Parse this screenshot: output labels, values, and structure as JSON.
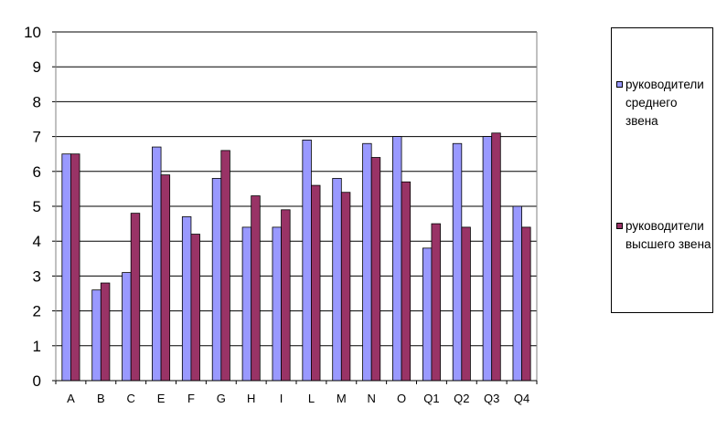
{
  "chart_data": {
    "type": "bar",
    "categories": [
      "A",
      "B",
      "C",
      "E",
      "F",
      "G",
      "H",
      "I",
      "L",
      "M",
      "N",
      "O",
      "Q1",
      "Q2",
      "Q3",
      "Q4"
    ],
    "series": [
      {
        "name": "руководители среднего звена",
        "color": "#9999ff",
        "values": [
          6.5,
          2.6,
          3.1,
          6.7,
          4.7,
          5.8,
          4.4,
          4.4,
          6.9,
          5.8,
          6.8,
          7.0,
          3.8,
          6.8,
          7.0,
          5.0
        ]
      },
      {
        "name": "руководители высшего звена",
        "color": "#993366",
        "values": [
          6.5,
          2.8,
          4.8,
          5.9,
          4.2,
          6.6,
          5.3,
          4.9,
          5.6,
          5.4,
          6.4,
          5.7,
          4.5,
          4.4,
          7.1,
          4.4
        ]
      }
    ],
    "ylim": [
      0,
      10
    ],
    "yticks": [
      "0",
      "1",
      "2",
      "3",
      "4",
      "5",
      "6",
      "7",
      "8",
      "9",
      "10"
    ],
    "grid": true,
    "legend_position": "right"
  }
}
